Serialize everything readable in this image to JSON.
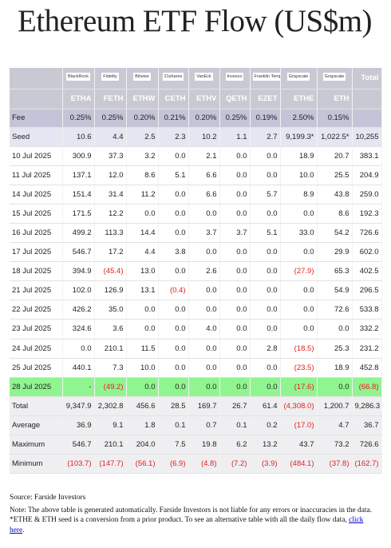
{
  "title": "Ethereum ETF Flow (US$m)",
  "table": {
    "logos": [
      "BlackRock",
      "Fidelity",
      "Bitwise",
      "21shares",
      "VanEck",
      "Invesco",
      "Franklin Templeton",
      "Grayscale",
      "Grayscale",
      "Total"
    ],
    "tickers": [
      "ETHA",
      "FETH",
      "ETHW",
      "CETH",
      "ETHV",
      "QETH",
      "EZET",
      "ETHE",
      "ETH"
    ],
    "rows": [
      {
        "label": "Fee",
        "cells": [
          "0.25%",
          "0.25%",
          "0.20%",
          "0.21%",
          "0.20%",
          "0.25%",
          "0.19%",
          "2.50%",
          "0.15%"
        ]
      },
      {
        "label": "Seed",
        "cells": [
          "10.6",
          "4.4",
          "2.5",
          "2.3",
          "10.2",
          "1.1",
          "2.7",
          "9,199.3*",
          "1,022.5*",
          "10,255"
        ]
      },
      {
        "label": "10 Jul 2025",
        "cells": [
          "300.9",
          "37.3",
          "3.2",
          "0.0",
          "2.1",
          "0.0",
          "0.0",
          "18.9",
          "20.7",
          "383.1"
        ]
      },
      {
        "label": "11 Jul 2025",
        "cells": [
          "137.1",
          "12.0",
          "8.6",
          "5.1",
          "6.6",
          "0.0",
          "0.0",
          "10.0",
          "25.5",
          "204.9"
        ]
      },
      {
        "label": "14 Jul 2025",
        "cells": [
          "151.4",
          "31.4",
          "11.2",
          "0.0",
          "6.6",
          "0.0",
          "5.7",
          "8.9",
          "43.8",
          "259.0"
        ]
      },
      {
        "label": "15 Jul 2025",
        "cells": [
          "171.5",
          "12.2",
          "0.0",
          "0.0",
          "0.0",
          "0.0",
          "0.0",
          "0.0",
          "8.6",
          "192.3"
        ]
      },
      {
        "label": "16 Jul 2025",
        "cells": [
          "499.2",
          "113.3",
          "14.4",
          "0.0",
          "3.7",
          "3.7",
          "5.1",
          "33.0",
          "54.2",
          "726.6"
        ]
      },
      {
        "label": "17 Jul 2025",
        "cells": [
          "546.7",
          "17.2",
          "4.4",
          "3.8",
          "0.0",
          "0.0",
          "0.0",
          "0.0",
          "29.9",
          "602.0"
        ]
      },
      {
        "label": "18 Jul 2025",
        "cells": [
          "394.9",
          "(45.4)",
          "13.0",
          "0.0",
          "2.6",
          "0.0",
          "0.0",
          "(27.9)",
          "65.3",
          "402.5"
        ]
      },
      {
        "label": "21 Jul 2025",
        "cells": [
          "102.0",
          "126.9",
          "13.1",
          "(0.4)",
          "0.0",
          "0.0",
          "0.0",
          "0.0",
          "54.9",
          "296.5"
        ]
      },
      {
        "label": "22 Jul 2025",
        "cells": [
          "426.2",
          "35.0",
          "0.0",
          "0.0",
          "0.0",
          "0.0",
          "0.0",
          "0.0",
          "72.6",
          "533.8"
        ]
      },
      {
        "label": "23 Jul 2025",
        "cells": [
          "324.6",
          "3.6",
          "0.0",
          "0.0",
          "4.0",
          "0.0",
          "0.0",
          "0.0",
          "0.0",
          "332.2"
        ]
      },
      {
        "label": "24 Jul 2025",
        "cells": [
          "0.0",
          "210.1",
          "11.5",
          "0.0",
          "0.0",
          "0.0",
          "2.8",
          "(18.5)",
          "25.3",
          "231.2"
        ]
      },
      {
        "label": "25 Jul 2025",
        "cells": [
          "440.1",
          "7.3",
          "10.0",
          "0.0",
          "0.0",
          "0.0",
          "0.0",
          "(23.5)",
          "18.9",
          "452.8"
        ]
      },
      {
        "label": "28 Jul 2025",
        "color": "#90f590",
        "cells": [
          "-",
          "(49.2)",
          "0.0",
          "0.0",
          "0.0",
          "0.0",
          "0.0",
          "(17.6)",
          "0.0",
          "(66.8)"
        ]
      },
      {
        "label": "Total",
        "cells": [
          "9,347.9",
          "2,302.8",
          "456.6",
          "28.5",
          "169.7",
          "26.7",
          "61.4",
          "(4,308.0)",
          "1,200.7",
          "9,286.3"
        ]
      },
      {
        "label": "Average",
        "cells": [
          "36.9",
          "9.1",
          "1.8",
          "0.1",
          "0.7",
          "0.1",
          "0.2",
          "(17.0)",
          "4.7",
          "36.7"
        ]
      },
      {
        "label": "Maximum",
        "cells": [
          "546.7",
          "210.1",
          "204.0",
          "7.5",
          "19.8",
          "6.2",
          "13.2",
          "43.7",
          "73.2",
          "726.6"
        ]
      },
      {
        "label": "Minimum",
        "cells": [
          "(103.7)",
          "(147.7)",
          "(56.1)",
          "(6.9)",
          "(4.8)",
          "(7.2)",
          "(3.9)",
          "(484.1)",
          "(37.8)",
          "(162.7)"
        ]
      }
    ]
  },
  "footer": {
    "source": "Source: Farside Investors",
    "note": "Note: The above table is generated automatically. Farside Investors is not liable for any errors or inaccuracies in the data. *ETHE & ETH seed is a conversion from a prior product.  To see an alternative table with all the daily flow data, ",
    "link": "click here",
    "end": "."
  }
}
